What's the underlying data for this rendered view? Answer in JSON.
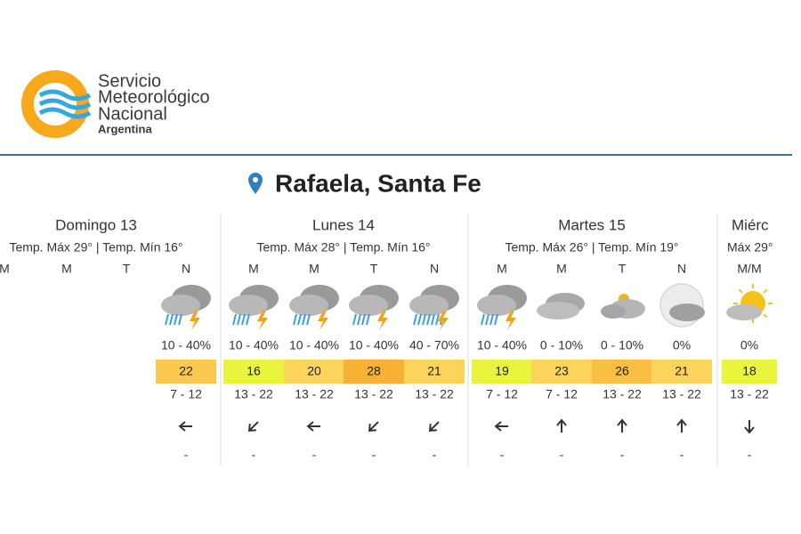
{
  "header": {
    "logo_lines": [
      "Servicio",
      "Meteorológico",
      "Nacional"
    ],
    "country": "Argentina"
  },
  "location": "Rafaela, Santa Fe",
  "days": [
    {
      "name": "Domingo 13",
      "temps": "Temp. Máx 29° | Temp. Mín 16°",
      "periods": [
        {
          "label": "M"
        },
        {
          "label": "M"
        },
        {
          "label": "T"
        },
        {
          "label": "N",
          "rain": "10 - 40%",
          "temp": 22,
          "wind": "7 - 12",
          "gust": "-"
        }
      ]
    },
    {
      "name": "Lunes 14",
      "temps": "Temp. Máx 28° | Temp. Mín 16°",
      "periods": [
        {
          "label": "M",
          "rain": "10 - 40%",
          "temp": 16,
          "wind": "13 - 22",
          "gust": "-"
        },
        {
          "label": "M",
          "rain": "10 - 40%",
          "temp": 20,
          "wind": "13 - 22",
          "gust": "-"
        },
        {
          "label": "T",
          "rain": "10 - 40%",
          "temp": 28,
          "wind": "13 - 22",
          "gust": "-"
        },
        {
          "label": "N",
          "rain": "40 - 70%",
          "temp": 21,
          "wind": "13 - 22",
          "gust": "-"
        }
      ]
    },
    {
      "name": "Martes 15",
      "temps": "Temp. Máx 26° | Temp. Mín 19°",
      "periods": [
        {
          "label": "M",
          "rain": "10 - 40%",
          "temp": 19,
          "wind": "7 - 12",
          "gust": "-"
        },
        {
          "label": "M",
          "rain": "0 - 10%",
          "temp": 23,
          "wind": "7 - 12",
          "gust": "-"
        },
        {
          "label": "T",
          "rain": "0 - 10%",
          "temp": 26,
          "wind": "13 - 22",
          "gust": "-"
        },
        {
          "label": "N",
          "rain": "0%",
          "temp": 21,
          "wind": "13 - 22",
          "gust": "-"
        }
      ]
    },
    {
      "name": "Miérc",
      "temps": "Máx 29°",
      "periods": [
        {
          "label": "M/M",
          "rain": "0%",
          "temp": 18,
          "wind": "13 - 22",
          "gust": "-"
        }
      ]
    }
  ]
}
